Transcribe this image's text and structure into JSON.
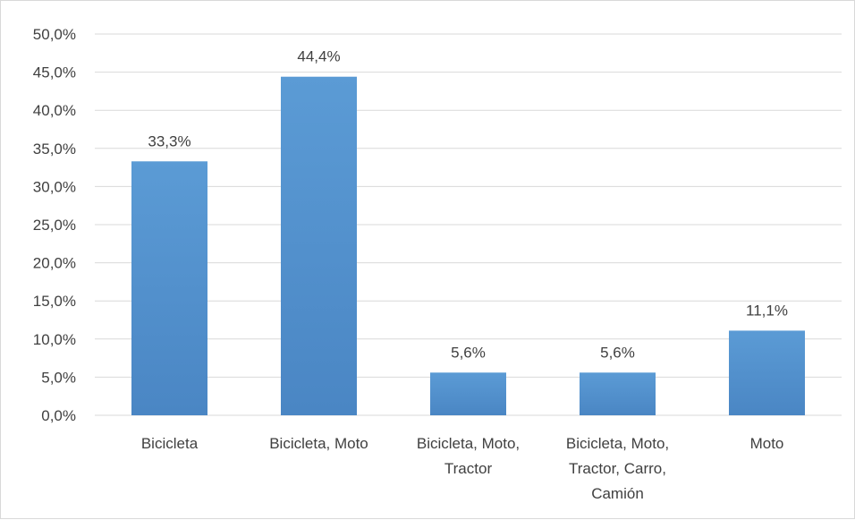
{
  "chart_data": {
    "type": "bar",
    "categories": [
      [
        "Bicicleta"
      ],
      [
        "Bicicleta, Moto"
      ],
      [
        "Bicicleta, Moto,",
        "Tractor"
      ],
      [
        "Bicicleta, Moto,",
        "Tractor, Carro,",
        "Camión"
      ],
      [
        "Moto"
      ]
    ],
    "values": [
      33.3,
      44.4,
      5.6,
      5.6,
      11.1
    ],
    "data_labels": [
      "33,3%",
      "44,4%",
      "5,6%",
      "5,6%",
      "11,1%"
    ],
    "y_ticks": [
      "0,0%",
      "5,0%",
      "10,0%",
      "15,0%",
      "20,0%",
      "25,0%",
      "30,0%",
      "35,0%",
      "40,0%",
      "45,0%",
      "50,0%"
    ],
    "ylim": [
      0,
      50
    ],
    "grid": true,
    "legend": "none",
    "bar_color": "#5b9bd5",
    "bar_color_dark": "#4a86c4",
    "grid_color": "#d9d9d9"
  }
}
